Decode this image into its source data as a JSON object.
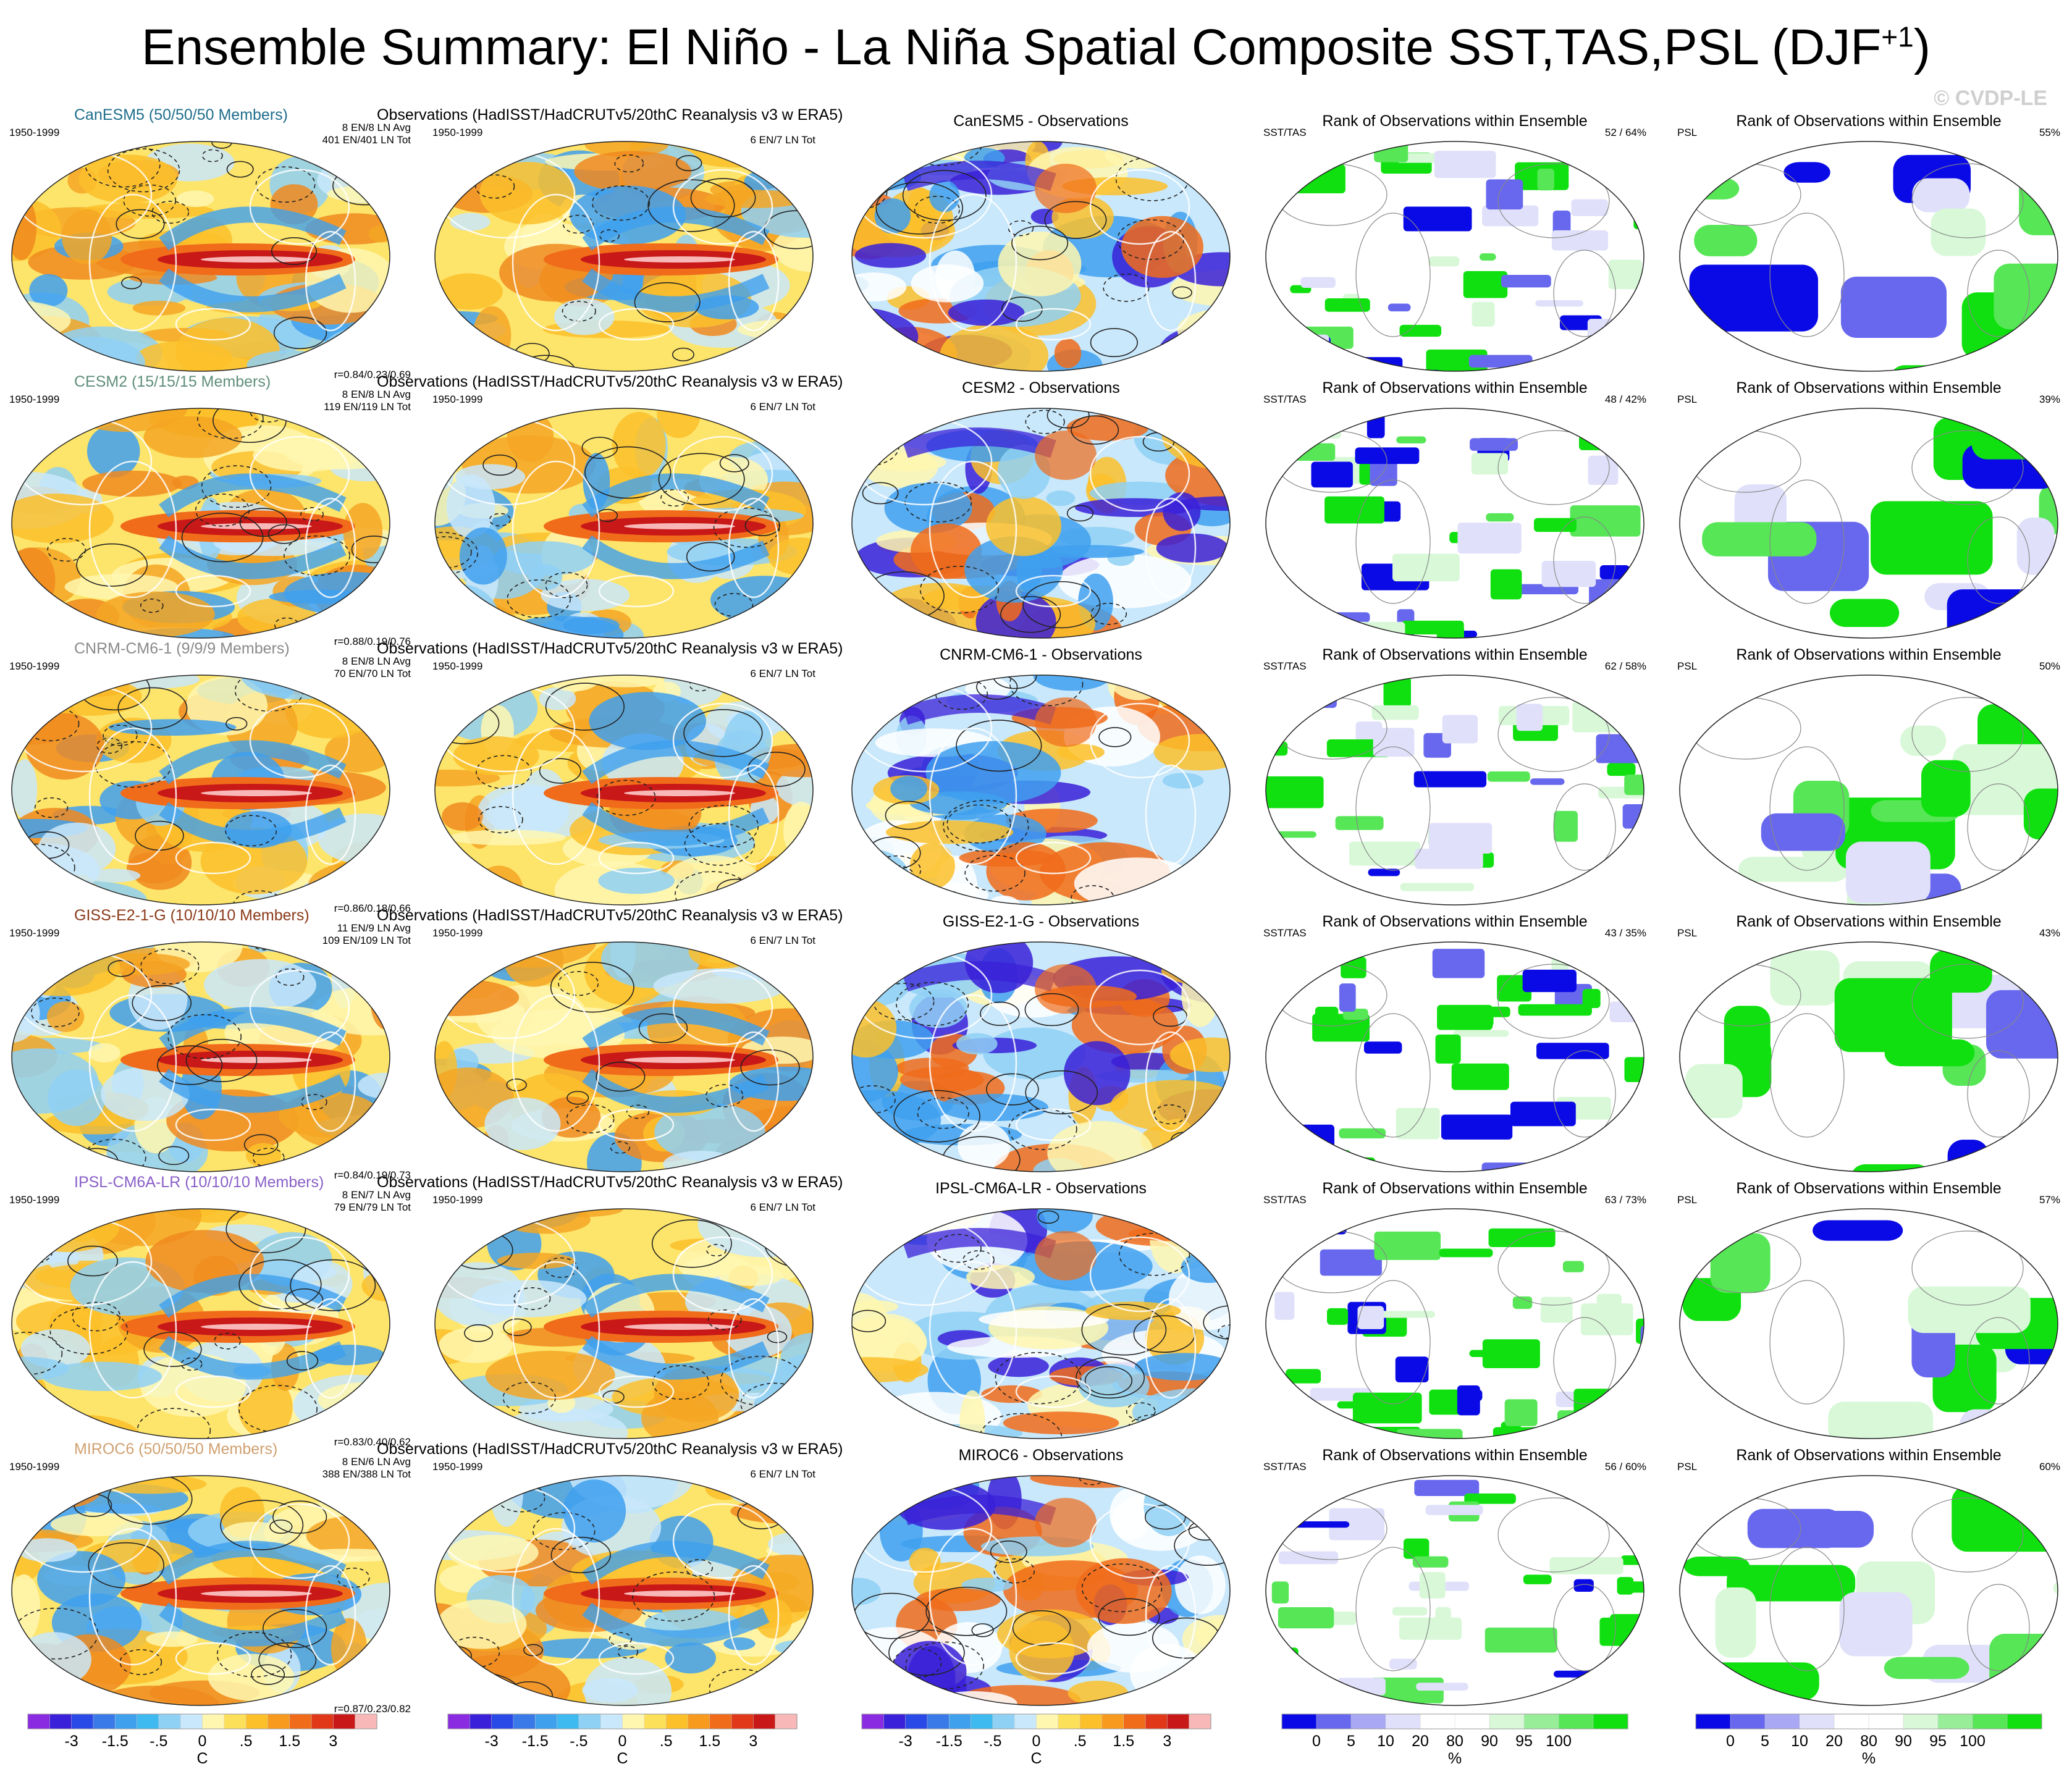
{
  "title": {
    "text": "Ensemble Summary: El Niño - La Niña Spatial Composite SST,TAS,PSL (DJF",
    "superscript": "+1",
    "close": ")"
  },
  "watermark": "© CVDP-LE",
  "rows": [
    {
      "model_title": "CanESM5 (50/50/50 Members)",
      "model_color": "#1f6e8c",
      "model_stats": [
        "8 EN/8 LN Avg",
        "401 EN/401 LN Tot"
      ],
      "corr": "r=0.84/0.23/0.69",
      "diff_title": "CanESM5 - Observations",
      "rank_sst": "52 /  64%",
      "rank_psl": "55%"
    },
    {
      "model_title": "CESM2 (15/15/15 Members)",
      "model_color": "#5f8f7a",
      "model_stats": [
        "8 EN/8 LN Avg",
        "119 EN/119 LN Tot"
      ],
      "corr": "r=0.88/0.19/0.76",
      "diff_title": "CESM2 - Observations",
      "rank_sst": "48 /  42%",
      "rank_psl": "39%"
    },
    {
      "model_title": "CNRM-CM6-1 (9/9/9 Members)",
      "model_color": "#8a8a8a",
      "model_stats": [
        "8 EN/8 LN Avg",
        "70 EN/70 LN Tot"
      ],
      "corr": "r=0.86/0.18/0.66",
      "diff_title": "CNRM-CM6-1 - Observations",
      "rank_sst": "62 /  58%",
      "rank_psl": "50%"
    },
    {
      "model_title": "GISS-E2-1-G (10/10/10 Members)",
      "model_color": "#8b3a1a",
      "model_stats": [
        "11 EN/9 LN Avg",
        "109 EN/109 LN Tot"
      ],
      "corr": "r=0.84/0.19/0.73",
      "diff_title": "GISS-E2-1-G - Observations",
      "rank_sst": "43 /  35%",
      "rank_psl": "43%"
    },
    {
      "model_title": "IPSL-CM6A-LR (10/10/10 Members)",
      "model_color": "#8a5fc8",
      "model_stats": [
        "8 EN/7 LN Avg",
        "79 EN/79 LN Tot"
      ],
      "corr": "r=0.83/0.40/0.62",
      "diff_title": "IPSL-CM6A-LR - Observations",
      "rank_sst": "63 /  73%",
      "rank_psl": "57%"
    },
    {
      "model_title": "MIROC6 (50/50/50 Members)",
      "model_color": "#d0a070",
      "model_stats": [
        "8 EN/6 LN Avg",
        "388 EN/388 LN Tot"
      ],
      "corr": "r=0.87/0.23/0.82",
      "diff_title": "MIROC6 - Observations",
      "rank_sst": "56 /  60%",
      "rank_psl": "60%"
    }
  ],
  "common": {
    "period": "1950-1999",
    "obs_title": "Observations (HadISST/HadCRUTv5/20thC Reanalysis v3 w ERA5)",
    "obs_stats": "6 EN/7 LN Tot",
    "rank_title": "Rank of Observations within Ensemble",
    "sst_label": "SST/TAS",
    "psl_label": "PSL"
  },
  "colorbars": {
    "temp": {
      "unit": "C",
      "ticks": [
        "-3",
        "-1.5",
        "-.5",
        "0",
        ".5",
        "1.5",
        "3"
      ],
      "colors": [
        "#8a2be2",
        "#3a20d8",
        "#2a4ae8",
        "#3a7ae8",
        "#3fa0ee",
        "#3fbaf0",
        "#8fd0f5",
        "#c9e8fb",
        "#fff7b0",
        "#fde05a",
        "#fcc02a",
        "#f89a1e",
        "#f06b1a",
        "#e03818",
        "#c81818",
        "#f8b8b8"
      ]
    },
    "rank": {
      "unit": "%",
      "ticks": [
        "0",
        "5",
        "10",
        "20",
        "80",
        "90",
        "95",
        "100"
      ],
      "colors": [
        "#0a0ae6",
        "#6868ee",
        "#a8a8f4",
        "#e0e0fa",
        "#ffffff",
        "#ffffff",
        "#d8f8d8",
        "#98ee98",
        "#56e656",
        "#10e010"
      ]
    }
  }
}
